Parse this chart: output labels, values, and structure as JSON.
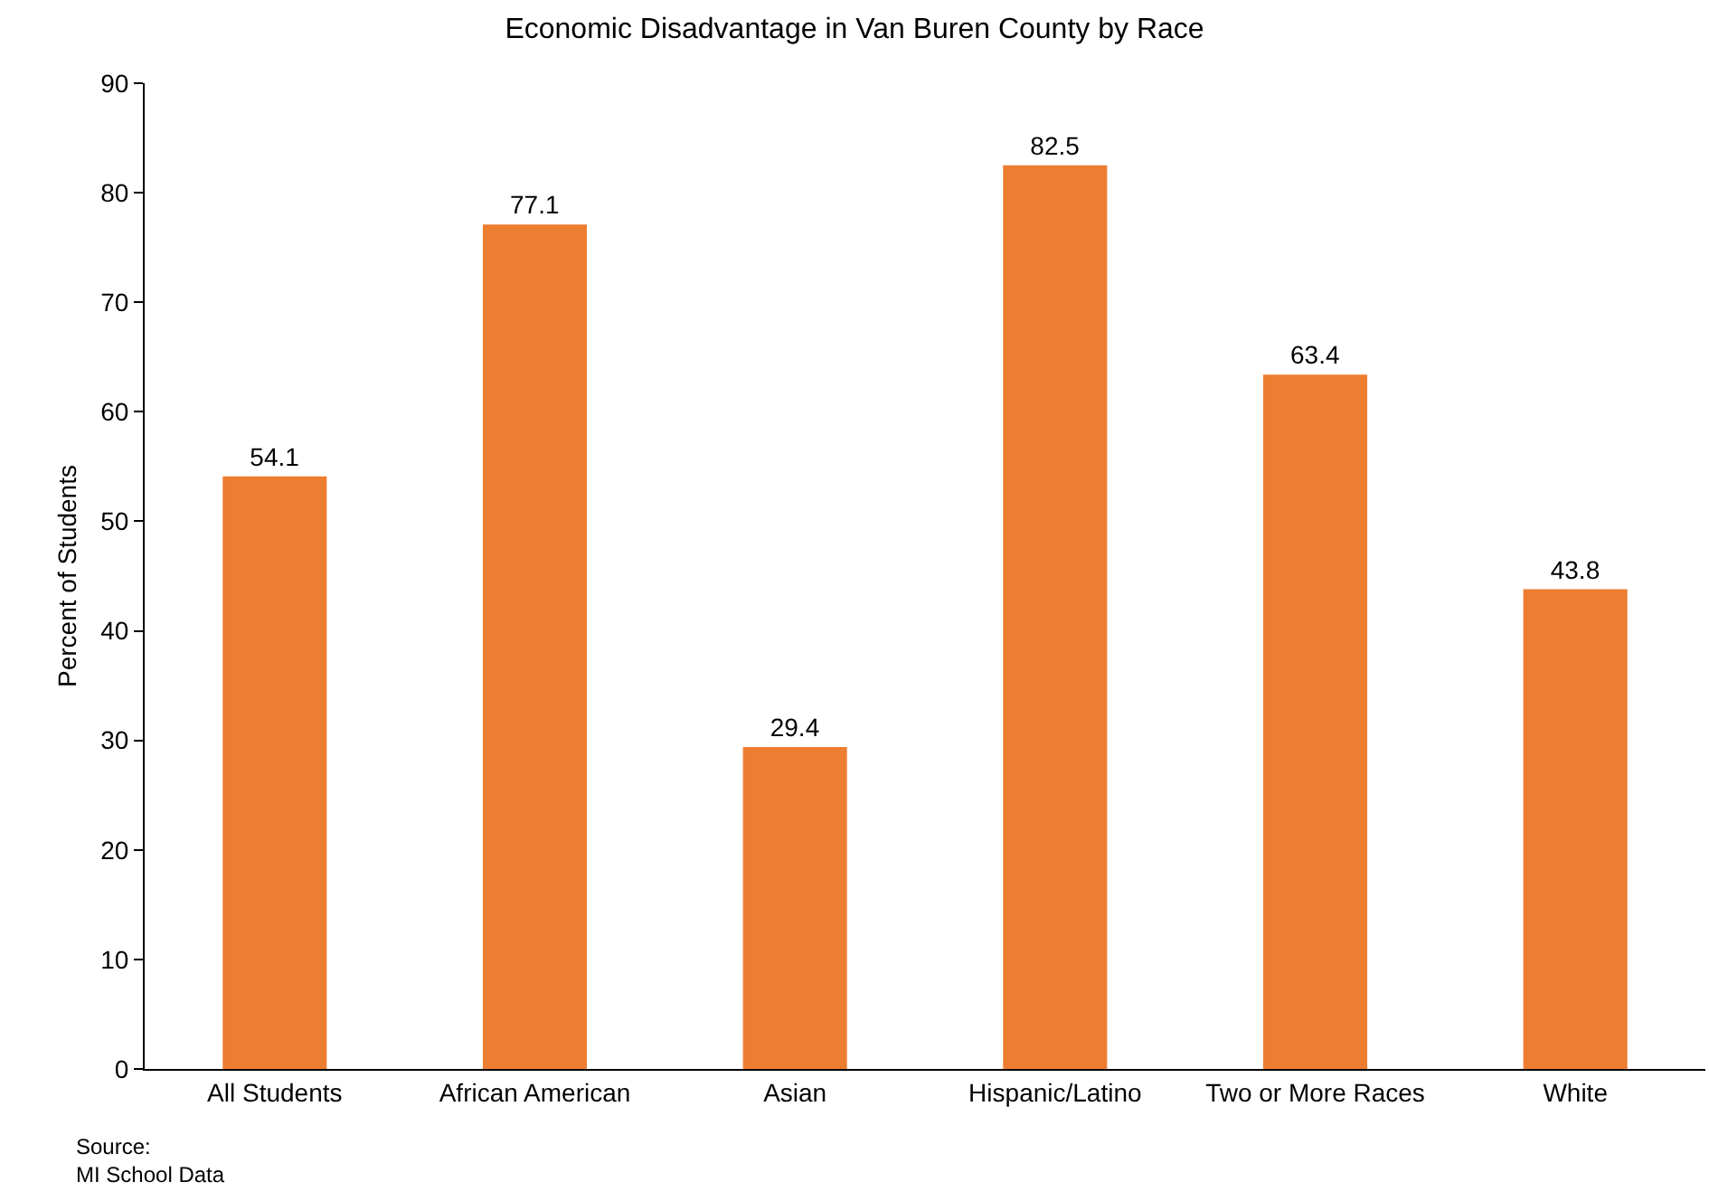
{
  "chart_data": {
    "type": "bar",
    "title": "Economic Disadvantage in Van Buren County by Race",
    "ylabel": "Percent of Students",
    "categories": [
      "All Students",
      "African American",
      "Asian",
      "Hispanic/Latino",
      "Two or More Races",
      "White"
    ],
    "values": [
      54.1,
      77.1,
      29.4,
      82.5,
      63.4,
      43.8
    ],
    "color": "#ed7d31",
    "data_labels": true,
    "ylim": [
      0,
      90
    ],
    "yticks": [
      0,
      10,
      20,
      30,
      40,
      50,
      60,
      70,
      80,
      90
    ],
    "grid": false,
    "annotations": [
      "Source:\nMI School Data"
    ]
  }
}
